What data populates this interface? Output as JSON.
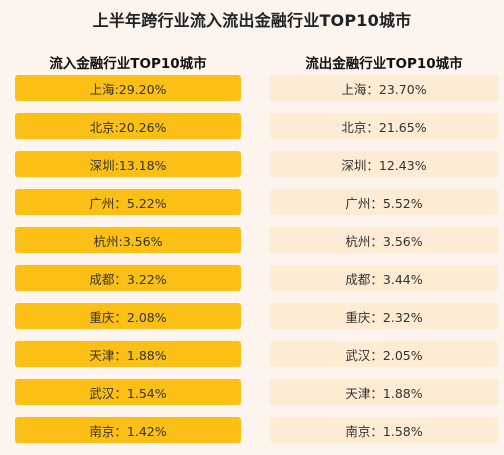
{
  "title": "上半年跨行业流入流出金融行业TOP10城市",
  "inflow": {
    "title": "流入金融行业TOP10城市",
    "color": "#fcbf15",
    "items": [
      "上海:29.20%",
      "北京:20.26%",
      "深圳:13.18%",
      "广州：5.22%",
      "杭州:3.56%",
      "成都：3.22%",
      "重庆：2.08%",
      "天津：1.88%",
      "武汉：1.54%",
      "南京：1.42%"
    ]
  },
  "outflow": {
    "title": "流出金融行业TOP10城市",
    "color": "#fdebd4",
    "items": [
      "上海：23.70%",
      "北京：21.65%",
      "深圳：12.43%",
      "广州：5.52%",
      "杭州：3.56%",
      "成都：3.44%",
      "重庆：2.32%",
      "武汉：2.05%",
      "天津：1.88%",
      "南京：1.58%"
    ]
  }
}
